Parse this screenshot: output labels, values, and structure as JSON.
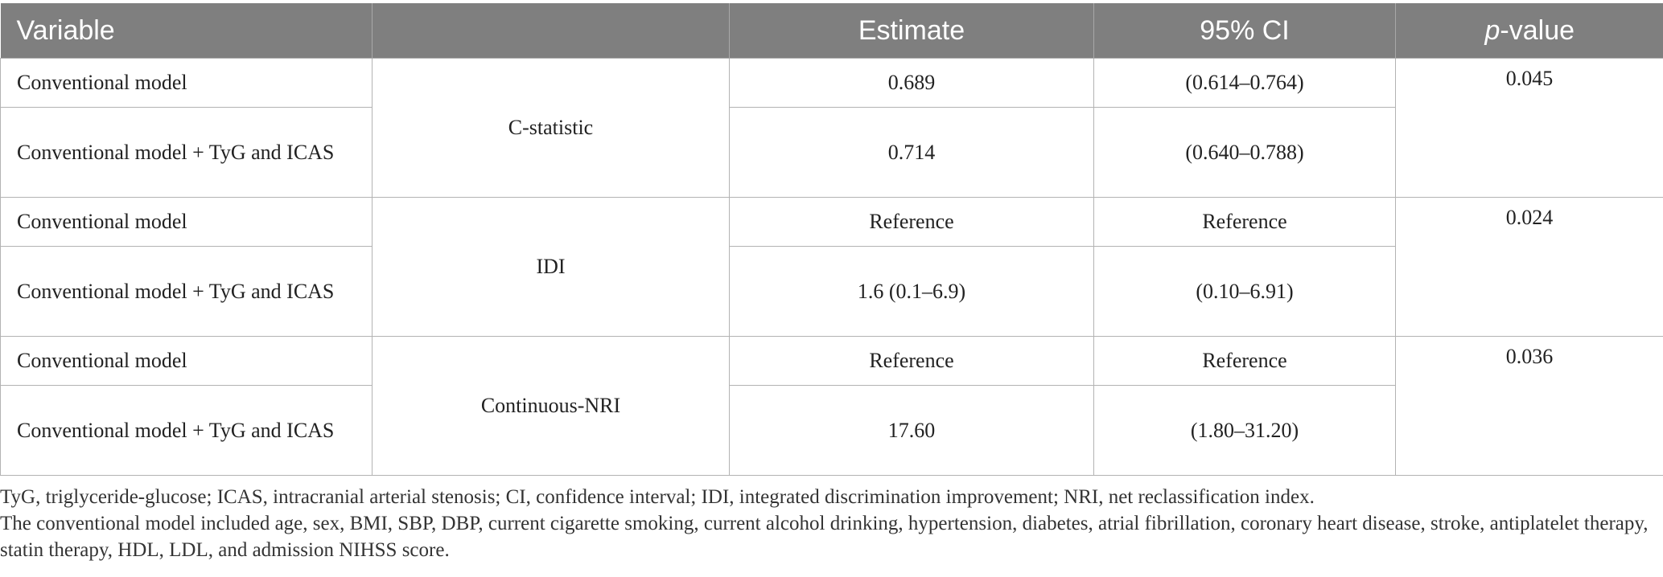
{
  "table": {
    "headers": {
      "variable": "Variable",
      "metric": "",
      "estimate": "Estimate",
      "ci": "95% CI",
      "pvalue_italic": "p",
      "pvalue_rest": "-value"
    },
    "groups": [
      {
        "metric": "C-statistic",
        "p_value": "0.045",
        "rows": [
          {
            "variable": "Conventional model",
            "estimate": "0.689",
            "ci": "(0.614–0.764)"
          },
          {
            "variable": "Conventional model + TyG and ICAS",
            "estimate": "0.714",
            "ci": "(0.640–0.788)"
          }
        ]
      },
      {
        "metric": "IDI",
        "p_value": "0.024",
        "rows": [
          {
            "variable": "Conventional model",
            "estimate": "Reference",
            "ci": "Reference"
          },
          {
            "variable": "Conventional model + TyG and ICAS",
            "estimate": "1.6 (0.1–6.9)",
            "ci": "(0.10–6.91)"
          }
        ]
      },
      {
        "metric": "Continuous-NRI",
        "p_value": "0.036",
        "rows": [
          {
            "variable": "Conventional model",
            "estimate": "Reference",
            "ci": "Reference"
          },
          {
            "variable": "Conventional model + TyG and ICAS",
            "estimate": "17.60",
            "ci": "(1.80–31.20)"
          }
        ]
      }
    ]
  },
  "footnotes": [
    "TyG, triglyceride-glucose; ICAS, intracranial arterial stenosis; CI, confidence interval; IDI, integrated discrimination improvement; NRI, net reclassification index.",
    "The conventional model included age, sex, BMI, SBP, DBP, current cigarette smoking, current alcohol drinking, hypertension, diabetes, atrial fibrillation, coronary heart disease, stroke, antiplatelet therapy, statin therapy, HDL, LDL, and admission NIHSS score."
  ],
  "colors": {
    "header_bg": "#7f7f7f",
    "header_text": "#ffffff",
    "grid_line": "#b3b3b3",
    "body_text": "#222222"
  }
}
